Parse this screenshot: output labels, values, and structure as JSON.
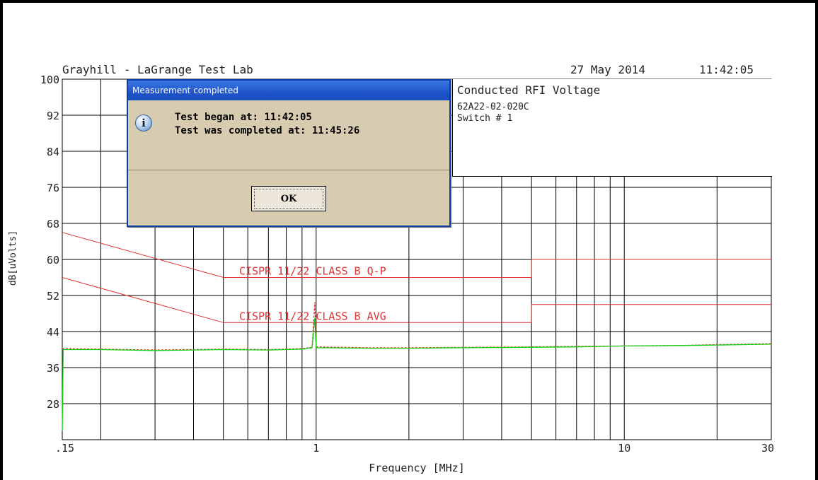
{
  "header": {
    "lab": "Grayhill - LaGrange Test Lab",
    "date": "27 May 2014",
    "time": "11:42:05"
  },
  "info_box": {
    "title": "Conducted RFI Voltage",
    "part": "62A22-02-020C",
    "switch": "Switch # 1"
  },
  "dialog": {
    "title": "Measurement completed",
    "line1": "Test began at: 11:42:05",
    "line2": "Test was completed at: 11:45:26",
    "ok_label": "OK",
    "icon": "info-icon"
  },
  "colors": {
    "limit": "#e03030",
    "trace_qp": "#e03030",
    "trace_avg": "#10d010",
    "grid": "#000000"
  },
  "chart_data": {
    "type": "line",
    "xlabel": "Frequency [MHz]",
    "ylabel": "dB[uVolts]",
    "x_scale": "log",
    "xlim": [
      0.15,
      30
    ],
    "ylim": [
      20,
      100
    ],
    "x_tick_labels": [
      {
        "value": 0.15,
        "label": ".15"
      },
      {
        "value": 1,
        "label": "1"
      },
      {
        "value": 10,
        "label": "10"
      },
      {
        "value": 30,
        "label": "30"
      }
    ],
    "x_grid": [
      0.15,
      0.2,
      0.3,
      0.4,
      0.5,
      0.6,
      0.7,
      0.8,
      0.9,
      1,
      2,
      3,
      4,
      5,
      6,
      7,
      8,
      9,
      10,
      20,
      30
    ],
    "y_ticks": [
      100,
      92,
      84,
      76,
      68,
      60,
      52,
      44,
      36,
      28
    ],
    "series": [
      {
        "name": "CISPR 11/22 CLASS B Q-P",
        "kind": "limit",
        "points": [
          [
            0.15,
            66
          ],
          [
            0.5,
            56
          ],
          [
            5,
            56
          ],
          [
            5,
            60
          ],
          [
            30,
            60
          ]
        ]
      },
      {
        "name": "CISPR 11/22 CLASS B AVG",
        "kind": "limit",
        "points": [
          [
            0.15,
            56
          ],
          [
            0.5,
            46
          ],
          [
            5,
            46
          ],
          [
            5,
            50
          ],
          [
            30,
            50
          ]
        ]
      },
      {
        "kind": "trace-qp",
        "points": [
          [
            0.15,
            40.2
          ],
          [
            0.2,
            40.1
          ],
          [
            0.3,
            39.9
          ],
          [
            0.4,
            40.0
          ],
          [
            0.5,
            40.1
          ],
          [
            0.7,
            40.0
          ],
          [
            0.9,
            40.2
          ],
          [
            0.97,
            40.5
          ],
          [
            0.99,
            50.5
          ],
          [
            1.0,
            40.6
          ],
          [
            1.5,
            40.4
          ],
          [
            2,
            40.4
          ],
          [
            3,
            40.5
          ],
          [
            5,
            40.6
          ],
          [
            7,
            40.7
          ],
          [
            10,
            40.8
          ],
          [
            15,
            40.9
          ],
          [
            20,
            41.1
          ],
          [
            30,
            41.3
          ]
        ]
      },
      {
        "kind": "trace-avg",
        "points": [
          [
            0.15,
            22
          ],
          [
            0.151,
            40.0
          ],
          [
            0.2,
            40.0
          ],
          [
            0.3,
            39.8
          ],
          [
            0.4,
            39.9
          ],
          [
            0.5,
            40.0
          ],
          [
            0.7,
            39.9
          ],
          [
            0.9,
            40.1
          ],
          [
            0.97,
            40.4
          ],
          [
            0.99,
            47
          ],
          [
            1.0,
            40.4
          ],
          [
            1.5,
            40.3
          ],
          [
            2,
            40.3
          ],
          [
            3,
            40.4
          ],
          [
            5,
            40.5
          ],
          [
            7,
            40.6
          ],
          [
            10,
            40.8
          ],
          [
            15,
            40.9
          ],
          [
            20,
            41.0
          ],
          [
            30,
            41.2
          ]
        ]
      }
    ]
  }
}
